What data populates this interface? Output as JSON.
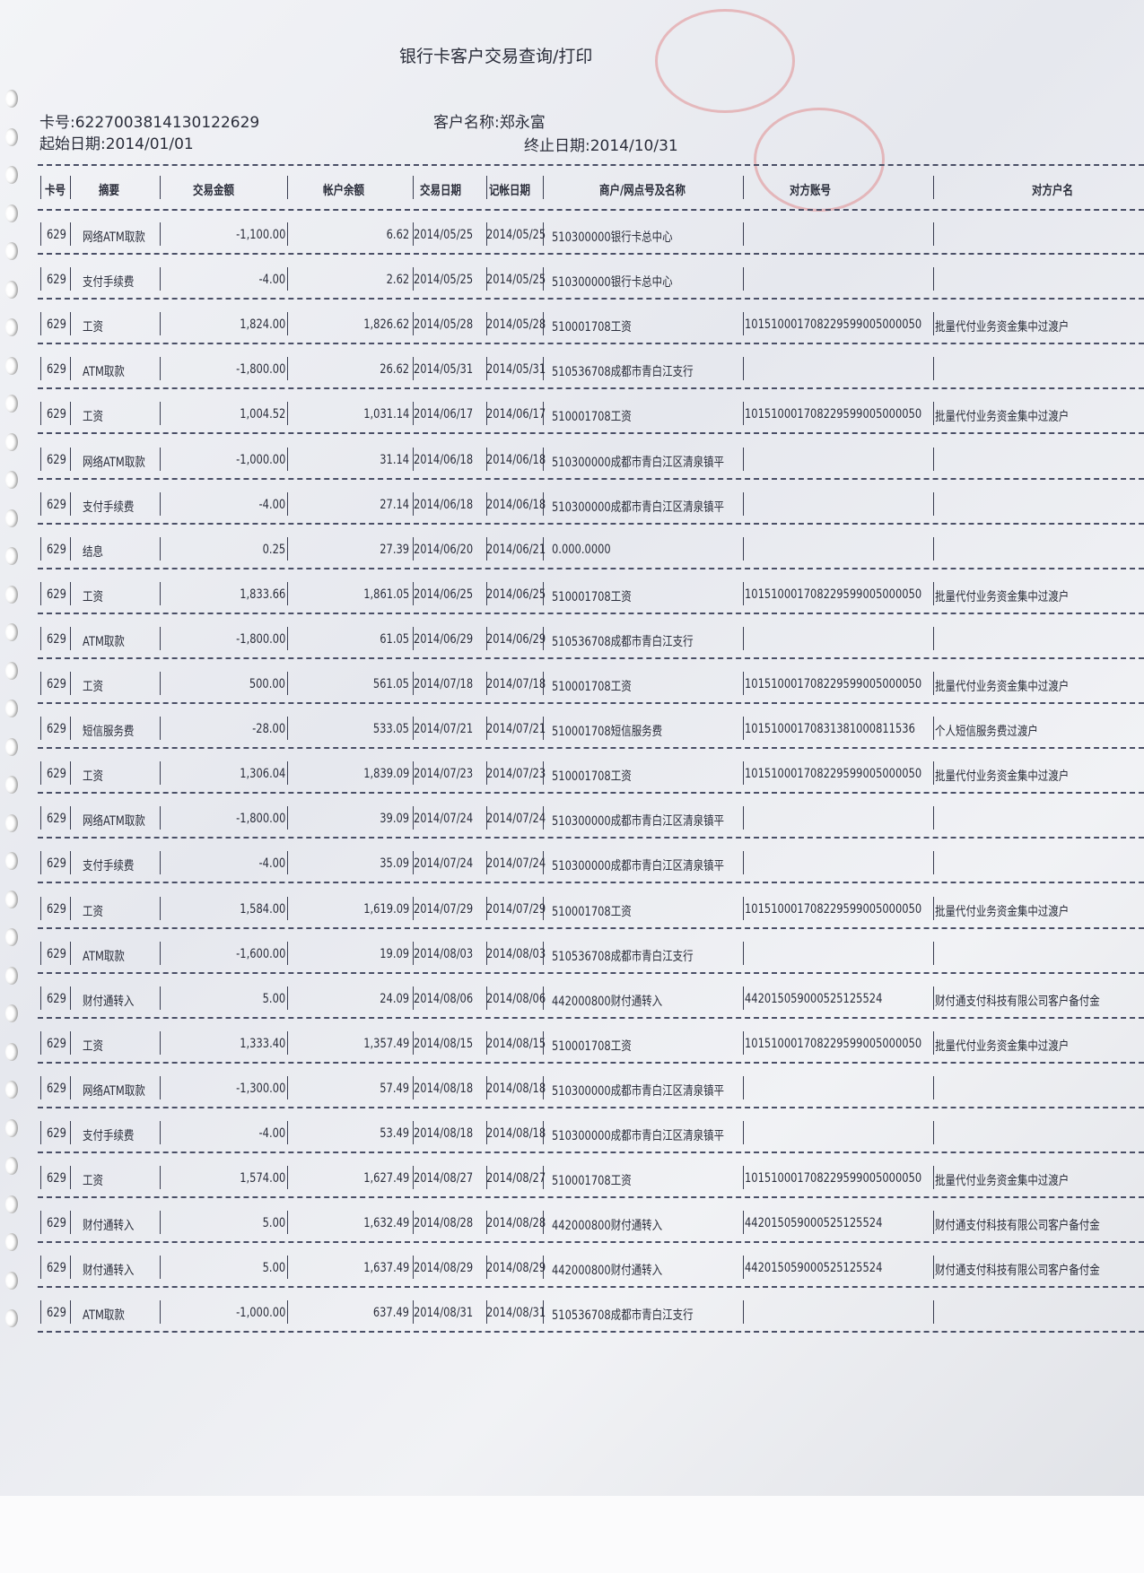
{
  "title": "银行卡客户交易查询/打印",
  "card_no": "卡号:6227003814130122629",
  "customer_name": "客户名称:郑永富",
  "start_date": "起始日期:2014/01/01",
  "end_date": "终止日期:2014/10/31",
  "columns": [
    "卡号",
    "摘要",
    "交易金额",
    "帐户余额",
    "交易日期",
    "记帐日期",
    "商户/网点号及名称",
    "对方账号",
    "对方户名"
  ],
  "rows": [
    [
      "629",
      "网络ATM取款",
      "-1,100.00",
      "6.62",
      "2014/05/25",
      "2014/05/25",
      "510300000银行卡总中心",
      "",
      ""
    ],
    [
      "629",
      "支付手续费",
      "-4.00",
      "2.62",
      "2014/05/25",
      "2014/05/25",
      "510300000银行卡总中心",
      "",
      ""
    ],
    [
      "629",
      "工资",
      "1,824.00",
      "1,826.62",
      "2014/05/28",
      "2014/05/28",
      "510001708工资",
      "101510001708229599005000050",
      "批量代付业务资金集中过渡户"
    ],
    [
      "629",
      "ATM取款",
      "-1,800.00",
      "26.62",
      "2014/05/31",
      "2014/05/31",
      "510536708成都市青白江支行",
      "",
      ""
    ],
    [
      "629",
      "工资",
      "1,004.52",
      "1,031.14",
      "2014/06/17",
      "2014/06/17",
      "510001708工资",
      "101510001708229599005000050",
      "批量代付业务资金集中过渡户"
    ],
    [
      "629",
      "网络ATM取款",
      "-1,000.00",
      "31.14",
      "2014/06/18",
      "2014/06/18",
      "510300000成都市青白江区清泉镇平",
      "",
      ""
    ],
    [
      "629",
      "支付手续费",
      "-4.00",
      "27.14",
      "2014/06/18",
      "2014/06/18",
      "510300000成都市青白江区清泉镇平",
      "",
      ""
    ],
    [
      "629",
      "结息",
      "0.25",
      "27.39",
      "2014/06/20",
      "2014/06/21",
      "0.000.0000",
      "",
      ""
    ],
    [
      "629",
      "工资",
      "1,833.66",
      "1,861.05",
      "2014/06/25",
      "2014/06/25",
      "510001708工资",
      "101510001708229599005000050",
      "批量代付业务资金集中过渡户"
    ],
    [
      "629",
      "ATM取款",
      "-1,800.00",
      "61.05",
      "2014/06/29",
      "2014/06/29",
      "510536708成都市青白江支行",
      "",
      ""
    ],
    [
      "629",
      "工资",
      "500.00",
      "561.05",
      "2014/07/18",
      "2014/07/18",
      "510001708工资",
      "101510001708229599005000050",
      "批量代付业务资金集中过渡户"
    ],
    [
      "629",
      "短信服务费",
      "-28.00",
      "533.05",
      "2014/07/21",
      "2014/07/21",
      "510001708短信服务费",
      "10151000170831381000811536",
      "个人短信服务费过渡户"
    ],
    [
      "629",
      "工资",
      "1,306.04",
      "1,839.09",
      "2014/07/23",
      "2014/07/23",
      "510001708工资",
      "101510001708229599005000050",
      "批量代付业务资金集中过渡户"
    ],
    [
      "629",
      "网络ATM取款",
      "-1,800.00",
      "39.09",
      "2014/07/24",
      "2014/07/24",
      "510300000成都市青白江区清泉镇平",
      "",
      ""
    ],
    [
      "629",
      "支付手续费",
      "-4.00",
      "35.09",
      "2014/07/24",
      "2014/07/24",
      "510300000成都市青白江区清泉镇平",
      "",
      ""
    ],
    [
      "629",
      "工资",
      "1,584.00",
      "1,619.09",
      "2014/07/29",
      "2014/07/29",
      "510001708工资",
      "101510001708229599005000050",
      "批量代付业务资金集中过渡户"
    ],
    [
      "629",
      "ATM取款",
      "-1,600.00",
      "19.09",
      "2014/08/03",
      "2014/08/03",
      "510536708成都市青白江支行",
      "",
      ""
    ],
    [
      "629",
      "财付通转入",
      "5.00",
      "24.09",
      "2014/08/06",
      "2014/08/06",
      "442000800财付通转入",
      "442015059000525125524",
      "财付通支付科技有限公司客户备付金"
    ],
    [
      "629",
      "工资",
      "1,333.40",
      "1,357.49",
      "2014/08/15",
      "2014/08/15",
      "510001708工资",
      "101510001708229599005000050",
      "批量代付业务资金集中过渡户"
    ],
    [
      "629",
      "网络ATM取款",
      "-1,300.00",
      "57.49",
      "2014/08/18",
      "2014/08/18",
      "510300000成都市青白江区清泉镇平",
      "",
      ""
    ],
    [
      "629",
      "支付手续费",
      "-4.00",
      "53.49",
      "2014/08/18",
      "2014/08/18",
      "510300000成都市青白江区清泉镇平",
      "",
      ""
    ],
    [
      "629",
      "工资",
      "1,574.00",
      "1,627.49",
      "2014/08/27",
      "2014/08/27",
      "510001708工资",
      "101510001708229599005000050",
      "批量代付业务资金集中过渡户"
    ],
    [
      "629",
      "财付通转入",
      "5.00",
      "1,632.49",
      "2014/08/28",
      "2014/08/28",
      "442000800财付通转入",
      "442015059000525125524",
      "财付通支付科技有限公司客户备付金"
    ],
    [
      "629",
      "财付通转入",
      "5.00",
      "1,637.49",
      "2014/08/29",
      "2014/08/29",
      "442000800财付通转入",
      "442015059000525125524",
      "财付通支付科技有限公司客户备付金"
    ],
    [
      "629",
      "ATM取款",
      "-1,000.00",
      "637.49",
      "2014/08/31",
      "2014/08/31",
      "510536708成都市青白江支行",
      "",
      ""
    ]
  ]
}
